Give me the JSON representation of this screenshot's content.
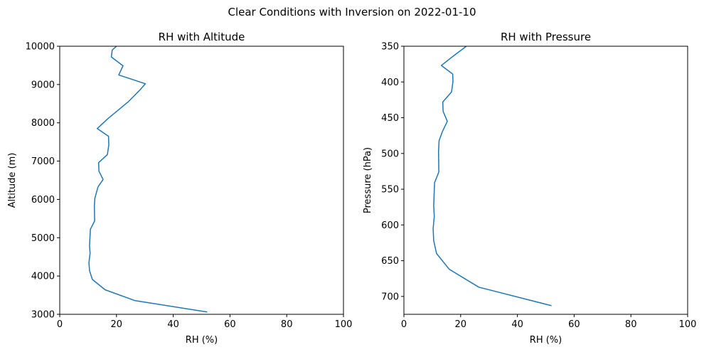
{
  "figure_title": "Clear Conditions with Inversion on 2022-01-10",
  "line_color": "#1f77b4",
  "chart_data": [
    {
      "type": "line",
      "title": "RH with Altitude",
      "xlabel": "RH (%)",
      "ylabel": "Altitude (m)",
      "xlim": [
        0,
        100
      ],
      "ylim": [
        3000,
        10000
      ],
      "y_inverted": false,
      "xticks": [
        0,
        20,
        40,
        60,
        80,
        100
      ],
      "yticks": [
        3000,
        4000,
        5000,
        6000,
        7000,
        8000,
        9000,
        10000
      ],
      "grid": false,
      "series": [
        {
          "x": [
            52,
            26.4,
            16,
            11.5,
            10.5,
            10.3,
            10.7,
            10.5,
            10.8,
            12.3,
            12.2,
            12.4,
            13.5,
            15.3,
            13.8,
            13.7,
            16.8,
            17.3,
            17.2,
            13.2,
            17,
            24,
            28.3,
            30.2,
            20.8,
            22.3,
            18.2,
            18.5,
            20
          ],
          "y": [
            3060,
            3360,
            3640,
            3910,
            4140,
            4350,
            4600,
            4780,
            5220,
            5440,
            5830,
            6040,
            6330,
            6520,
            6740,
            6960,
            7170,
            7420,
            7650,
            7850,
            8110,
            8540,
            8860,
            9020,
            9250,
            9490,
            9720,
            9900,
            10000
          ]
        }
      ]
    },
    {
      "type": "line",
      "title": "RH with Pressure",
      "xlabel": "RH (%)",
      "ylabel": "Pressure (hPa)",
      "xlim": [
        0,
        100
      ],
      "ylim": [
        725,
        350
      ],
      "y_inverted": true,
      "xticks": [
        0,
        20,
        40,
        60,
        80,
        100
      ],
      "yticks": [
        350,
        400,
        450,
        500,
        550,
        600,
        650,
        700
      ],
      "grid": false,
      "series": [
        {
          "x": [
            52,
            26.4,
            16,
            11.5,
            10.5,
            10.3,
            10.7,
            10.5,
            10.8,
            12.3,
            12.2,
            12.4,
            13.5,
            15.3,
            13.8,
            13.7,
            16.8,
            17.3,
            17.2,
            13.2,
            17,
            22
          ],
          "y": [
            713,
            687,
            662,
            640,
            622,
            605,
            588,
            573,
            541,
            526,
            497,
            482,
            470,
            455,
            441,
            428,
            414,
            399,
            389,
            377,
            365,
            350
          ]
        }
      ]
    }
  ]
}
